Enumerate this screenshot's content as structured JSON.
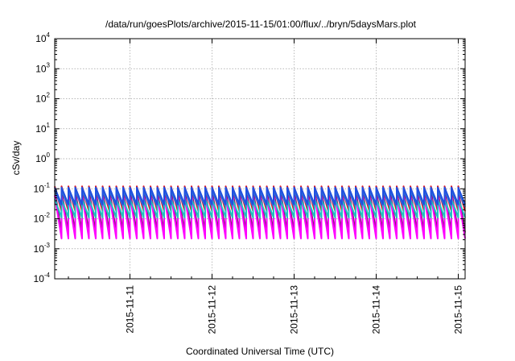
{
  "chart_data": {
    "type": "line",
    "title": "/data/run/goesPlots/archive/2015-11-15/01:00/flux/../bryn/5daysMars.plot",
    "xlabel": "Coordinated Universal Time (UTC)",
    "ylabel": "cSv/day",
    "yscale": "log",
    "ylim": [
      0.0001,
      10000
    ],
    "xlim": [
      "2015-11-10T02:00",
      "2015-11-15T02:00"
    ],
    "grid": true,
    "x_tick_labels": [
      "2015-11-11",
      "2015-11-12",
      "2015-11-13",
      "2015-11-14",
      "2015-11-15"
    ],
    "y_tick_labels": [
      {
        "base": "10",
        "exp": "4"
      },
      {
        "base": "10",
        "exp": "3"
      },
      {
        "base": "10",
        "exp": "2"
      },
      {
        "base": "10",
        "exp": "1"
      },
      {
        "base": "10",
        "exp": "0"
      },
      {
        "base": "10",
        "exp": "-1"
      },
      {
        "base": "10",
        "exp": "-2"
      },
      {
        "base": "10",
        "exp": "-3"
      },
      {
        "base": "10",
        "exp": "-4"
      }
    ],
    "sawtooth_period_hours": 2,
    "series": [
      {
        "color": "#e0141e",
        "peak": 0.12,
        "trough": 0.018
      },
      {
        "color": "#7b1f6e",
        "peak": 0.09,
        "trough": 0.0035
      },
      {
        "color": "#ff00ff",
        "peak": 0.06,
        "trough": 0.0022
      },
      {
        "color": "#2f6fd6",
        "peak": 0.085,
        "trough": 0.025
      },
      {
        "color": "#20c0c0",
        "peak": 0.045,
        "trough": 0.011
      },
      {
        "color": "#2050e0",
        "peak": 0.11,
        "trough": 0.03
      }
    ]
  }
}
